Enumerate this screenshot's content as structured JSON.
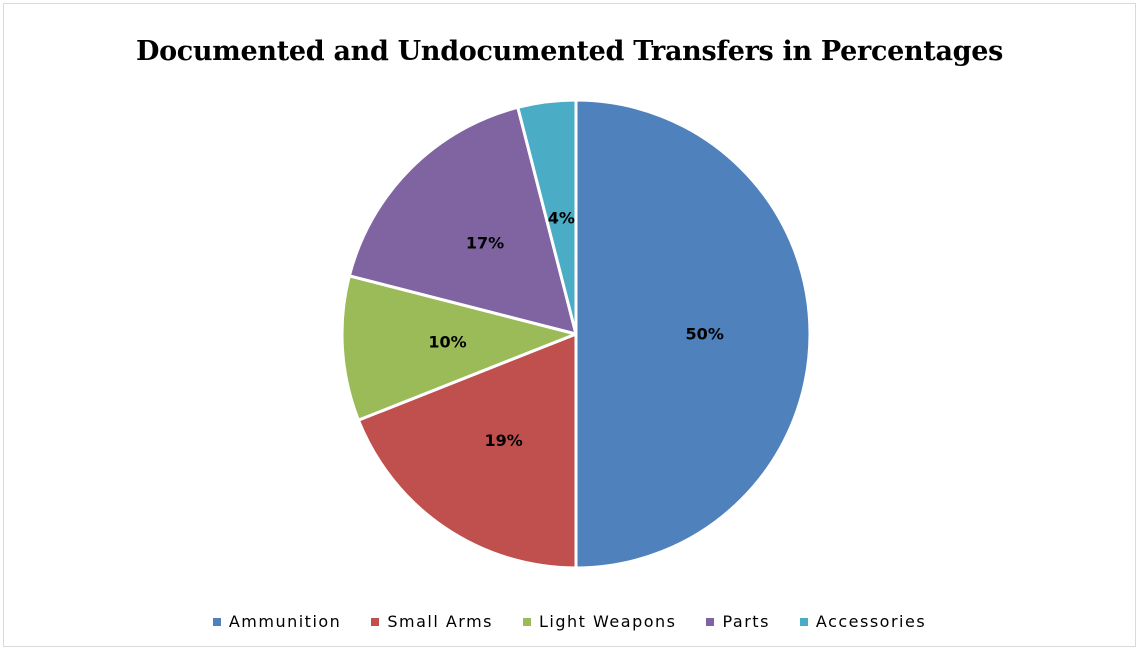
{
  "chart_data": {
    "type": "pie",
    "title": "Documented and Undocumented Transfers in Percentages",
    "categories": [
      "Ammunition",
      "Small Arms",
      "Light Weapons",
      "Parts",
      "Accessories"
    ],
    "values": [
      50,
      19,
      10,
      17,
      4
    ],
    "labels": [
      "50%",
      "19%",
      "10%",
      "17%",
      "4%"
    ],
    "colors": [
      "#4F81BD",
      "#C0504D",
      "#9BBB59",
      "#8064A2",
      "#4BACC6"
    ],
    "start_angle_deg": 0,
    "direction": "clockwise",
    "legend": "bottom"
  }
}
